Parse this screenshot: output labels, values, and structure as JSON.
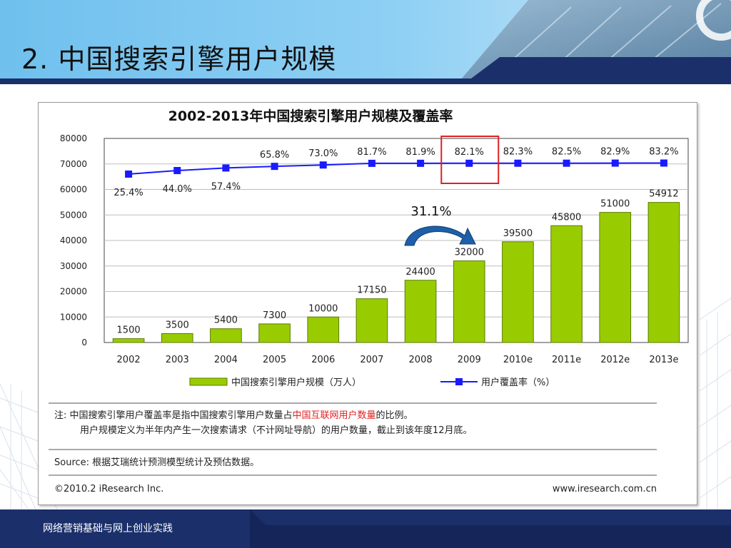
{
  "slide": {
    "title": "2. 中国搜索引擎用户规模",
    "footer": "网络营销基础与网上创业实践"
  },
  "chart_data": {
    "type": "bar",
    "title": "2002-2013年中国搜索引擎用户规模及覆盖率",
    "categories": [
      "2002",
      "2003",
      "2004",
      "2005",
      "2006",
      "2007",
      "2008",
      "2009",
      "2010e",
      "2011e",
      "2012e",
      "2013e"
    ],
    "series": [
      {
        "name": "中国搜索引擎用户规模（万人）",
        "type": "bar",
        "color": "#99cc00",
        "values": [
          1500,
          3500,
          5400,
          7300,
          10000,
          17150,
          24400,
          32000,
          39500,
          45800,
          51000,
          54912
        ],
        "labels": [
          "1500",
          "3500",
          "5400",
          "7300",
          "10000",
          "17150",
          "24400",
          "32000",
          "39500",
          "45800",
          "51000",
          "54912"
        ]
      },
      {
        "name": "用户覆盖率（%）",
        "type": "line",
        "color": "#1a1aff",
        "values": [
          25.4,
          44.0,
          57.4,
          65.8,
          73.0,
          81.7,
          81.9,
          82.1,
          82.3,
          82.5,
          82.9,
          83.2
        ],
        "labels": [
          "25.4%",
          "44.0%",
          "57.4%",
          "65.8%",
          "73.0%",
          "81.7%",
          "81.9%",
          "82.1%",
          "82.3%",
          "82.5%",
          "82.9%",
          "83.2%"
        ]
      }
    ],
    "y_ticks": [
      "80000",
      "70000",
      "60000",
      "50000",
      "40000",
      "30000",
      "20000",
      "10000",
      "0"
    ],
    "ylim": [
      0,
      80000
    ],
    "grid": true,
    "legend": "bottom",
    "annotations": {
      "growth_label": "31.1%",
      "highlight_category": "2009"
    },
    "notes": {
      "note_prefix": "注: 中国搜索引擎用户覆盖率是指中国搜索引擎用户数量占",
      "note_highlight": "中国互联网用户数量",
      "note_suffix": "的比例。",
      "note_line2": "用户规模定义为半年内产生一次搜索请求（不计网址导航）的用户数量，截止到该年度12月底。",
      "source": "Source: 根据艾瑞统计预测模型统计及预估数据。",
      "copyright": "©2010.2 iResearch Inc.",
      "website": "www.iresearch.com.cn"
    },
    "colors": {
      "bar": "#99cc00",
      "bar_stroke": "#5a7a00",
      "line": "#1a1aff",
      "highlight_box": "#e02020",
      "note_highlight": "#e02020"
    }
  }
}
